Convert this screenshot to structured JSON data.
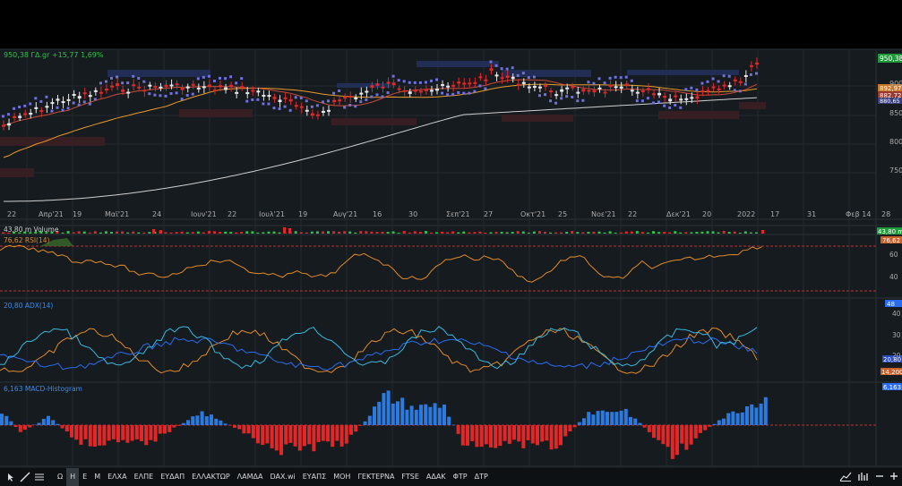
{
  "main_panel": {
    "price_label": "950,38 ΓΔ.gr +15,77 1,69%",
    "last_price": "950,38",
    "right_badges": [
      "892,97",
      "882,72",
      "880,65"
    ],
    "y_ticks": [
      "900",
      "850",
      "800",
      "750"
    ],
    "x_ticks": [
      "22",
      "Απρ'21",
      "19",
      "Μαϊ'21",
      "24",
      "Ιουν'21",
      "22",
      "Ιουλ'21",
      "19",
      "Αυγ'21",
      "16",
      "30",
      "Σεπ'21",
      "27",
      "Οκτ'21",
      "25",
      "Νοε'21",
      "22",
      "Δεκ'21",
      "20",
      "2022",
      "17",
      "31",
      "Φεβ 14",
      "28"
    ]
  },
  "volume_panel": {
    "label": "43,80 m Volume",
    "badge": "43,80 m"
  },
  "rsi_panel": {
    "label": "76,62 RSI(14)",
    "badge": "76,62",
    "y_ticks": [
      "60",
      "40"
    ]
  },
  "adx_panel": {
    "label": "20,80 ADX(14)",
    "badges": [
      "48",
      "20,80",
      "14,200"
    ],
    "y_ticks": [
      "40",
      "30",
      "20"
    ]
  },
  "macd_panel": {
    "label": "6,163 MACD-Histogram",
    "badge": "6,163"
  },
  "colors": {
    "up": "#e6e6e6",
    "down": "#e02828",
    "sar": "#7070e0",
    "ma_orange": "#e89a2a",
    "ma_red": "#c84a3a",
    "ma_white": "#cfcfcf",
    "rsi": "#e08a2a",
    "adx_blue": "#2a6cf0",
    "adx_cyan": "#3ab8e0",
    "adx_orange": "#e08a2a",
    "hist_up": "#2a7ae0",
    "hist_down": "#e02828",
    "volume_green": "#2ec44a",
    "badge_green": "#1f9a3a"
  },
  "toolbar": {
    "tools": [
      "drawing-line-icon",
      "indicators-icon"
    ],
    "timeframes": [
      "Ω",
      "Η",
      "Ε",
      "Μ"
    ],
    "active_timeframe": "Η",
    "symbols": [
      "ΕΛΧΑ",
      "ΕΛΠΕ",
      "ΕΥΔΑΠ",
      "ΕΛΛΑΚΤΩΡ",
      "ΛΑΜΔΑ",
      "DAX.wi",
      "ΕΥΑΠΣ",
      "ΜΟΗ",
      "ΓΕΚΤΕΡΝΑ",
      "FTSE",
      "ΑΔΑΚ",
      "ΦΤΡ",
      "ΔΤΡ"
    ]
  }
}
